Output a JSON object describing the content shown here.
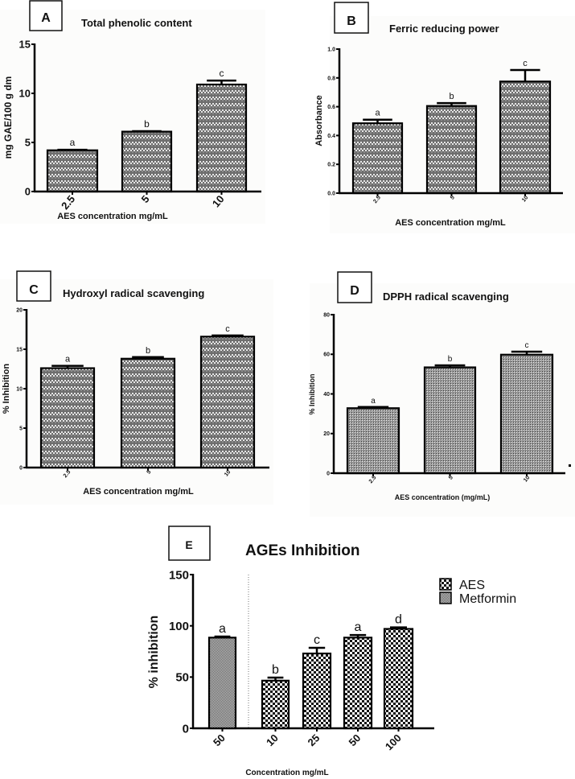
{
  "figure": {
    "panels": [
      {
        "id": "A",
        "letter": "A",
        "title": "Total phenolic content"
      },
      {
        "id": "B",
        "letter": "B",
        "title": "Ferric reducing power"
      },
      {
        "id": "C",
        "letter": "C",
        "title": "Hydroxyl radical scavenging"
      },
      {
        "id": "D",
        "letter": "D",
        "title": "DPPH radical scavenging"
      },
      {
        "id": "E",
        "letter": "E",
        "title": "AGEs Inhibition"
      }
    ],
    "colors": {
      "bar_fill_dark": "#6f6f6f",
      "bar_fill_light": "#bfbfbf",
      "axis": "#000000"
    }
  },
  "chart_data": [
    {
      "id": "A",
      "type": "bar",
      "title": "Total phenolic content",
      "xlabel": "AES concentration mg/mL",
      "ylabel": "mg GAE/100 g dm",
      "categories": [
        "2.5",
        "5",
        "10"
      ],
      "values": [
        4.2,
        6.1,
        10.9
      ],
      "errors": [
        0.05,
        0.05,
        0.4
      ],
      "significance": [
        "a",
        "b",
        "c"
      ],
      "ylim": [
        0,
        15
      ],
      "yticks": [
        "0",
        "5",
        "10",
        "15"
      ],
      "ytick_values": [
        0,
        5,
        10,
        15
      ],
      "grid": false
    },
    {
      "id": "B",
      "type": "bar",
      "title": "Ferric reducing power",
      "xlabel": "AES concentration mg/mL",
      "ylabel": "Absorbance",
      "categories": [
        "2.5",
        "5",
        "10"
      ],
      "values": [
        0.485,
        0.605,
        0.775
      ],
      "errors": [
        0.025,
        0.02,
        0.08
      ],
      "significance": [
        "a",
        "b",
        "c"
      ],
      "ylim": [
        0,
        1.0
      ],
      "yticks": [
        "0.0",
        "0.2",
        "0.4",
        "0.6",
        "0.8",
        "1.0"
      ],
      "ytick_values": [
        0,
        0.2,
        0.4,
        0.6,
        0.8,
        1.0
      ],
      "grid": false
    },
    {
      "id": "C",
      "type": "bar",
      "title": "Hydroxyl radical scavenging",
      "xlabel": "AES concentration mg/mL",
      "ylabel": "% Inhibition",
      "categories": [
        "2.5",
        "5",
        "10"
      ],
      "values": [
        12.6,
        13.8,
        16.6
      ],
      "errors": [
        0.3,
        0.2,
        0.15
      ],
      "significance": [
        "a",
        "b",
        "c"
      ],
      "ylim": [
        0,
        20
      ],
      "yticks": [
        "0",
        "5",
        "10",
        "15",
        "20"
      ],
      "ytick_values": [
        0,
        5,
        10,
        15,
        20
      ],
      "grid": false
    },
    {
      "id": "D",
      "type": "bar",
      "title": "DPPH radical scavenging",
      "xlabel": "AES concentration (mg/mL)",
      "ylabel": "% Inhibition",
      "categories": [
        "2.5",
        "5",
        "10"
      ],
      "values": [
        32.8,
        53.4,
        59.8
      ],
      "errors": [
        0.6,
        1.0,
        1.5
      ],
      "significance": [
        "a",
        "b",
        "c"
      ],
      "ylim": [
        0,
        80
      ],
      "yticks": [
        "0",
        "20",
        "40",
        "60",
        "80"
      ],
      "ytick_values": [
        0,
        20,
        40,
        60,
        80
      ],
      "grid": false
    },
    {
      "id": "E",
      "type": "bar",
      "title": "AGEs Inhibition",
      "xlabel": "Concentration mg/mL",
      "ylabel": "% inhibition",
      "categories": [
        "50",
        "10",
        "25",
        "50",
        "100"
      ],
      "series": [
        {
          "name": "Metformin",
          "categories_index": [
            0
          ],
          "values": [
            88.5
          ],
          "errors": [
            1.0
          ]
        },
        {
          "name": "AES",
          "categories_index": [
            1,
            2,
            3,
            4
          ],
          "values": [
            46.5,
            73.0,
            88.5,
            97.0
          ],
          "errors": [
            3.0,
            5.5,
            2.5,
            1.5
          ]
        }
      ],
      "values": [
        88.5,
        46.5,
        73.0,
        88.5,
        97.0
      ],
      "errors": [
        1.0,
        3.0,
        5.5,
        2.5,
        1.5
      ],
      "bar_series": [
        "Metformin",
        "AES",
        "AES",
        "AES",
        "AES"
      ],
      "significance": [
        "a",
        "b",
        "c",
        "a",
        "d"
      ],
      "ylim": [
        0,
        150
      ],
      "yticks": [
        "0",
        "50",
        "100",
        "150"
      ],
      "ytick_values": [
        0,
        50,
        100,
        150
      ],
      "legend": [
        "AES",
        "Metformin"
      ],
      "legend_position": "top-right",
      "separator_after_index": 0,
      "grid": false
    }
  ]
}
